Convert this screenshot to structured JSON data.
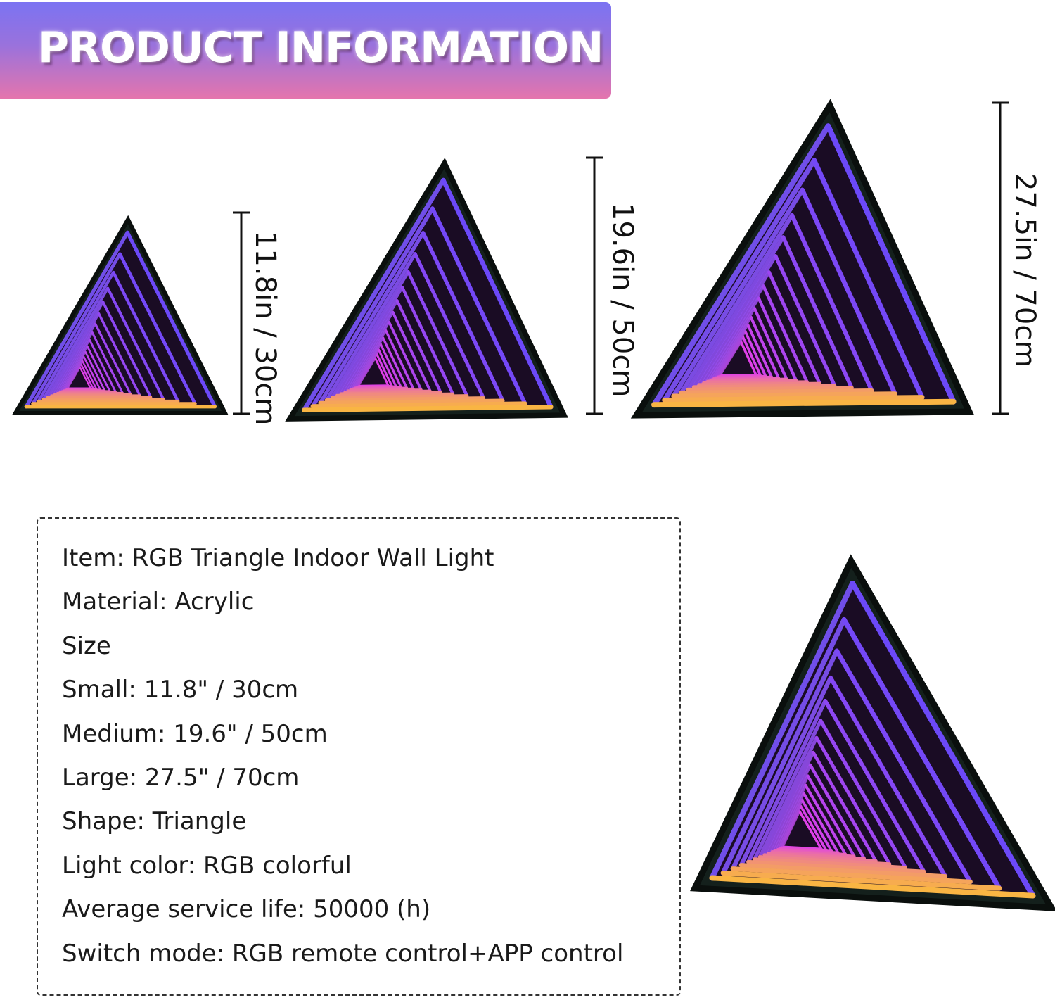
{
  "banner": {
    "title": "PRODUCT INFORMATION",
    "gradient": [
      "#7b73f2",
      "#e475ad"
    ]
  },
  "sizes": [
    {
      "label": "11.8in / 30cm"
    },
    {
      "label": "19.6in / 50cm"
    },
    {
      "label": "27.5in / 70cm"
    }
  ],
  "specs": [
    "Item: RGB Triangle Indoor Wall Light",
    "Material: Acrylic",
    "Size",
    "Small: 11.8\" / 30cm",
    "Medium: 19.6\" / 50cm",
    "Large: 27.5\" / 70cm",
    "Shape: Triangle",
    "Light color: RGB colorful",
    "Average service life: 50000 (h)",
    "Switch mode: RGB remote control+APP control"
  ],
  "light_colors": {
    "blue": "#3a4dff",
    "magenta": "#e040e8",
    "yellow": "#ffd21a",
    "frame": "#14201c"
  }
}
